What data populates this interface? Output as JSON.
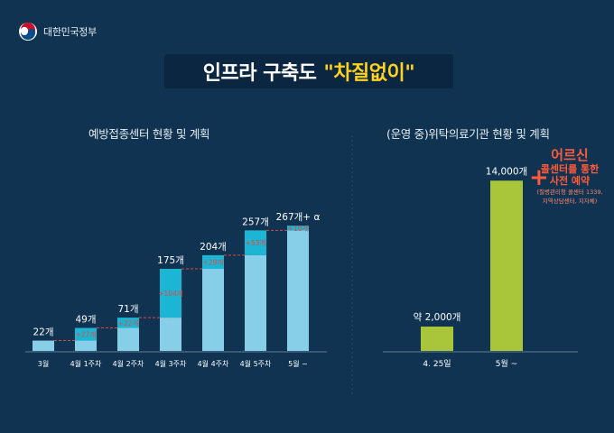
{
  "logo_text": "대한민국정부",
  "title": {
    "main": "인프라 구축도",
    "accent": "\"차질없이\""
  },
  "chart_data": [
    {
      "type": "bar",
      "title": "예방접종센터 현황 및 계획",
      "categories": [
        "3월",
        "4월 1주차",
        "4월 2주차",
        "4월 3주차",
        "4월 4주차",
        "4월 5주차",
        "5월 ~"
      ],
      "totals": [
        22,
        49,
        71,
        175,
        204,
        257,
        267
      ],
      "value_labels": [
        "22개",
        "49개",
        "71개",
        "175개",
        "204개",
        "257개",
        "267개+ α"
      ],
      "increments": [
        0,
        27,
        22,
        104,
        29,
        53,
        10
      ],
      "increment_labels": [
        "",
        "+27개",
        "+22개",
        "+104개",
        "+29개",
        "+53개",
        "+10개"
      ],
      "series": [
        {
          "values": [
            22,
            22,
            49,
            71,
            175,
            204,
            257
          ]
        },
        {
          "values": [
            0,
            27,
            22,
            104,
            29,
            53,
            10
          ]
        }
      ],
      "colors": {
        "base": "#87cfe8",
        "increment": "#1cb5d3",
        "increment_text": "#e8453c",
        "dashed": "#e8453c"
      }
    },
    {
      "type": "bar",
      "title": "(운영 중)위탁의료기관 현황 및 계획",
      "categories": [
        "4. 25일",
        "5월 ~"
      ],
      "values": [
        2000,
        14000
      ],
      "value_labels": [
        "약 2,000개",
        "14,000개"
      ],
      "colors": {
        "bar": "#a9c63a"
      }
    }
  ],
  "callout": {
    "plus": "+",
    "line1": "어르신",
    "line2": "콜센터를 통한",
    "line3": "사전 예약",
    "note1": "(질병관리청 콜센터 1339,",
    "note2": "지역상담센터, 지자체)"
  }
}
